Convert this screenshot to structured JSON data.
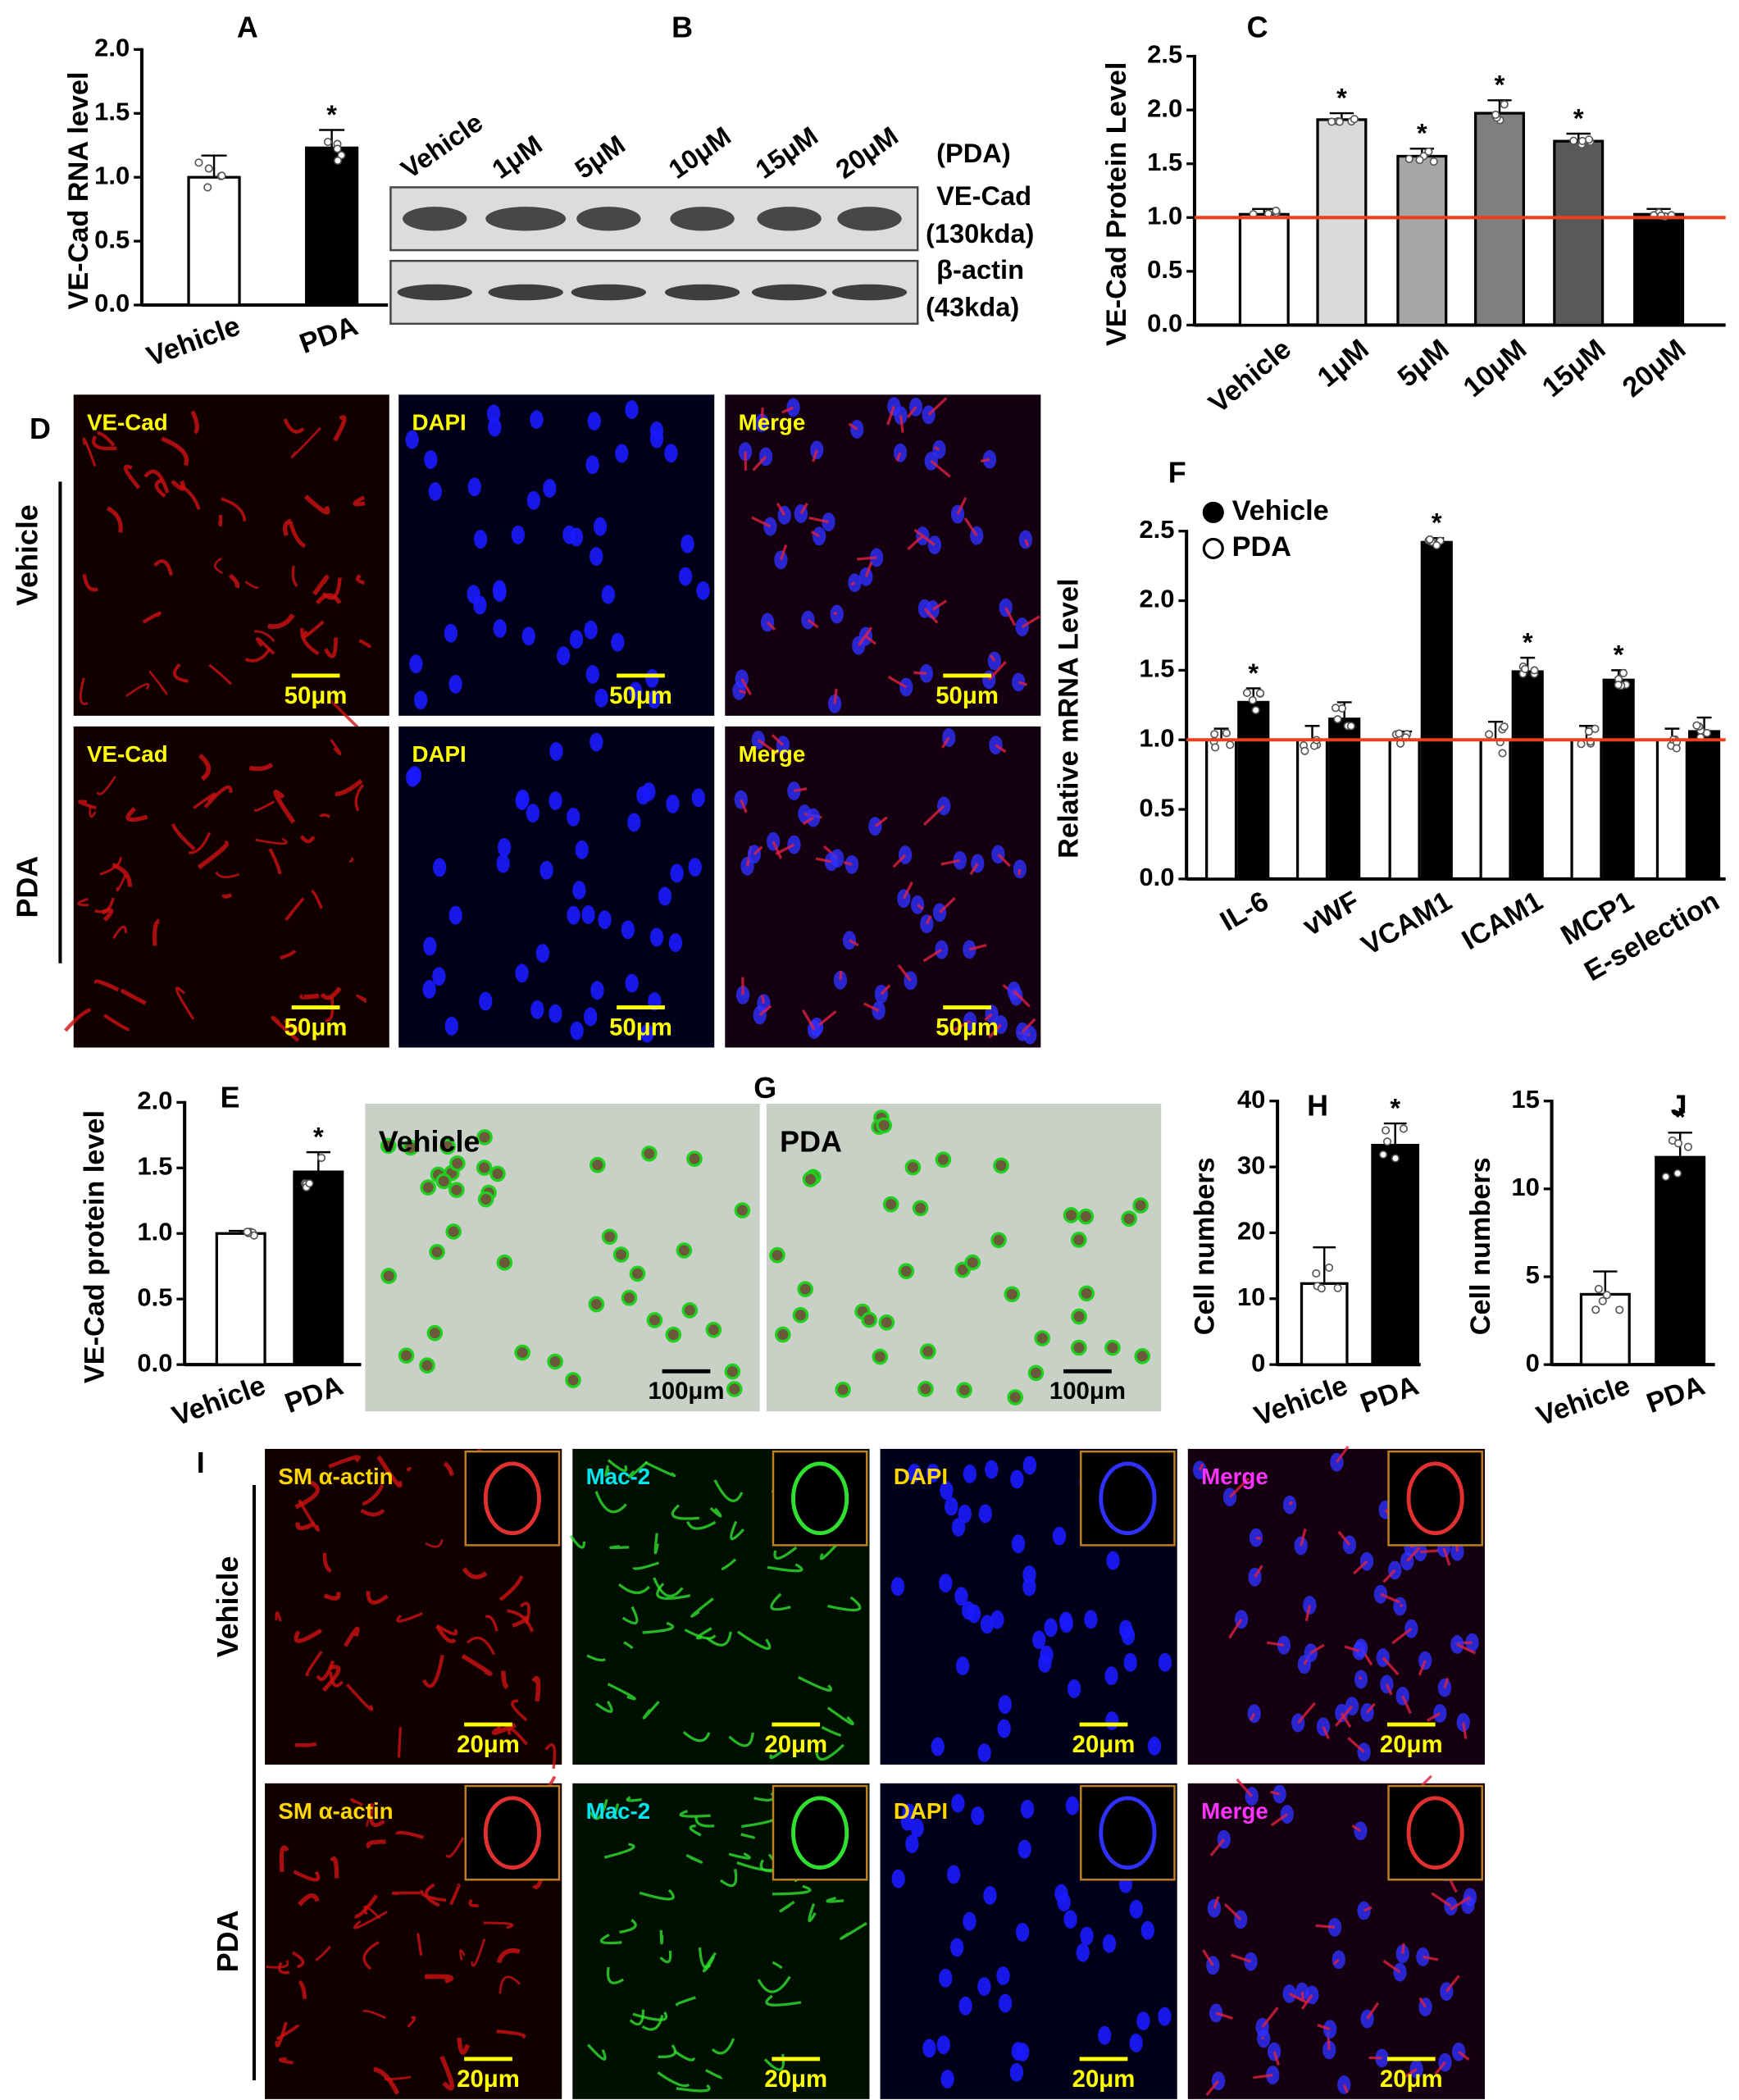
{
  "chart_data": [
    {
      "type": "bar",
      "panel": "A",
      "y_label": "VE-Cad RNA level",
      "categories": [
        "Vehicle",
        "PDA"
      ],
      "values": [
        1.0,
        1.23
      ],
      "errors": [
        0.17,
        0.14
      ],
      "colors": [
        "#ffffff",
        "#000000"
      ],
      "significance": [
        null,
        "*"
      ],
      "ylim": [
        0,
        2
      ],
      "yticks": [
        {
          "value": 0,
          "label": "0.0"
        },
        {
          "value": 0.5,
          "label": "0.5"
        },
        {
          "value": 1,
          "label": "1.0"
        },
        {
          "value": 1.5,
          "label": "1.5"
        },
        {
          "value": 2,
          "label": "2.0"
        }
      ]
    },
    {
      "type": "bar",
      "panel": "C",
      "y_label": "VE-Cad Protein Level",
      "categories": [
        "Vehicle",
        "1μM",
        "5μM",
        "10μM",
        "15μM",
        "20μM"
      ],
      "values": [
        1.03,
        1.91,
        1.57,
        1.97,
        1.71,
        1.03
      ],
      "errors": [
        0.05,
        0.06,
        0.07,
        0.12,
        0.07,
        0.05
      ],
      "colors": [
        "#ffffff",
        "#d9d9d9",
        "#a6a6a6",
        "#7f7f7f",
        "#595959",
        "#000000"
      ],
      "significance": [
        null,
        "*",
        "*",
        "*",
        "*",
        null
      ],
      "reference_line": {
        "value": 1,
        "color": "#e8401c"
      },
      "ylim": [
        0,
        2.5
      ],
      "yticks": [
        {
          "value": 0,
          "label": "0.0"
        },
        {
          "value": 0.5,
          "label": "0.5"
        },
        {
          "value": 1,
          "label": "1.0"
        },
        {
          "value": 1.5,
          "label": "1.5"
        },
        {
          "value": 2,
          "label": "2.0"
        },
        {
          "value": 2.5,
          "label": "2.5"
        }
      ]
    },
    {
      "type": "bar",
      "panel": "F",
      "y_label": "Relative mRNA Level",
      "categories": [
        "IL-6",
        "vWF",
        "VCAM1",
        "ICAM1",
        "MCP1",
        "E-selection"
      ],
      "series": [
        {
          "name": "Vehicle",
          "color": "#ffffff",
          "legend_marker": "#000000",
          "values": [
            1.0,
            1.0,
            1.0,
            1.0,
            1.0,
            1.0
          ],
          "errors": [
            0.08,
            0.1,
            0.06,
            0.13,
            0.1,
            0.08
          ],
          "significance": [
            null,
            null,
            null,
            null,
            null,
            null
          ]
        },
        {
          "name": "PDA",
          "color": "#000000",
          "legend_marker": "#ffffff",
          "values": [
            1.27,
            1.15,
            2.42,
            1.49,
            1.43,
            1.06
          ],
          "errors": [
            0.1,
            0.12,
            0.03,
            0.1,
            0.07,
            0.1
          ],
          "significance": [
            "*",
            null,
            "*",
            "*",
            "*",
            null
          ]
        }
      ],
      "reference_line": {
        "value": 1,
        "color": "#e8401c"
      },
      "ylim": [
        0,
        2.5
      ],
      "yticks": [
        {
          "value": 0,
          "label": "0.0"
        },
        {
          "value": 0.5,
          "label": "0.5"
        },
        {
          "value": 1,
          "label": "1.0"
        },
        {
          "value": 1.5,
          "label": "1.5"
        },
        {
          "value": 2,
          "label": "2.0"
        },
        {
          "value": 2.5,
          "label": "2.5"
        }
      ]
    },
    {
      "type": "bar",
      "panel": "E",
      "y_label": "VE-Cad protein level",
      "categories": [
        "Vehicle",
        "PDA"
      ],
      "values": [
        1.0,
        1.47
      ],
      "errors": [
        0.02,
        0.15
      ],
      "colors": [
        "#ffffff",
        "#000000"
      ],
      "significance": [
        null,
        "*"
      ],
      "ylim": [
        0,
        2
      ],
      "yticks": [
        {
          "value": 0,
          "label": "0.0"
        },
        {
          "value": 0.5,
          "label": "0.5"
        },
        {
          "value": 1,
          "label": "1.0"
        },
        {
          "value": 1.5,
          "label": "1.5"
        },
        {
          "value": 2,
          "label": "2.0"
        }
      ]
    },
    {
      "type": "bar",
      "panel": "H",
      "y_label": "Cell numbers",
      "categories": [
        "Vehicle",
        "PDA"
      ],
      "values": [
        12.3,
        33.3
      ],
      "errors": [
        5.5,
        3.3
      ],
      "colors": [
        "#ffffff",
        "#000000"
      ],
      "significance": [
        null,
        "*"
      ],
      "ylim": [
        0,
        40
      ],
      "yticks": [
        0,
        10,
        20,
        30,
        40
      ]
    },
    {
      "type": "bar",
      "panel": "J",
      "y_label": "Cell numbers",
      "categories": [
        "Vehicle",
        "PDA"
      ],
      "values": [
        4.0,
        11.8
      ],
      "errors": [
        1.3,
        1.4
      ],
      "colors": [
        "#ffffff",
        "#000000"
      ],
      "significance": [
        null,
        "*"
      ],
      "ylim": [
        0,
        15
      ],
      "yticks": [
        0,
        5,
        10,
        15
      ]
    }
  ],
  "blot": {
    "panel": "B",
    "lanes": [
      "Vehicle",
      "1μM",
      "5μM",
      "10μM",
      "15μM",
      "20μM"
    ],
    "treatment": "(PDA)",
    "rows": [
      {
        "protein": "VE-Cad",
        "size": "(130kda)"
      },
      {
        "protein": "β-actin",
        "size": "(43kda)"
      }
    ]
  },
  "micrographs": [
    {
      "panel": "D",
      "rows": [
        {
          "label": "Vehicle",
          "images": [
            {
              "label": "VE-Cad",
              "scale": "50μm"
            },
            {
              "label": "DAPI",
              "scale": "50μm"
            },
            {
              "label": "Merge",
              "scale": "50μm"
            }
          ]
        },
        {
          "label": "PDA",
          "images": [
            {
              "label": "VE-Cad",
              "scale": "50μm"
            },
            {
              "label": "DAPI",
              "scale": "50μm"
            },
            {
              "label": "Merge",
              "scale": "50μm"
            }
          ]
        }
      ]
    },
    {
      "panel": "G",
      "rows": [
        {
          "images": [
            {
              "label": "Vehicle",
              "scale": "100μm"
            },
            {
              "label": "PDA",
              "scale": "100μm"
            }
          ]
        }
      ]
    },
    {
      "panel": "I",
      "rows": [
        {
          "label": "Vehicle",
          "images": [
            {
              "label": "SM α-actin",
              "scale": "20μm"
            },
            {
              "label": "Mac-2",
              "scale": "20μm"
            },
            {
              "label": "DAPI",
              "scale": "20μm"
            },
            {
              "label": "Merge",
              "scale": "20μm"
            }
          ]
        },
        {
          "label": "PDA",
          "images": [
            {
              "label": "SM α-actin",
              "scale": "20μm"
            },
            {
              "label": "Mac-2",
              "scale": "20μm"
            },
            {
              "label": "DAPI",
              "scale": "20μm"
            },
            {
              "label": "Merge",
              "scale": "20μm"
            }
          ]
        }
      ]
    }
  ]
}
